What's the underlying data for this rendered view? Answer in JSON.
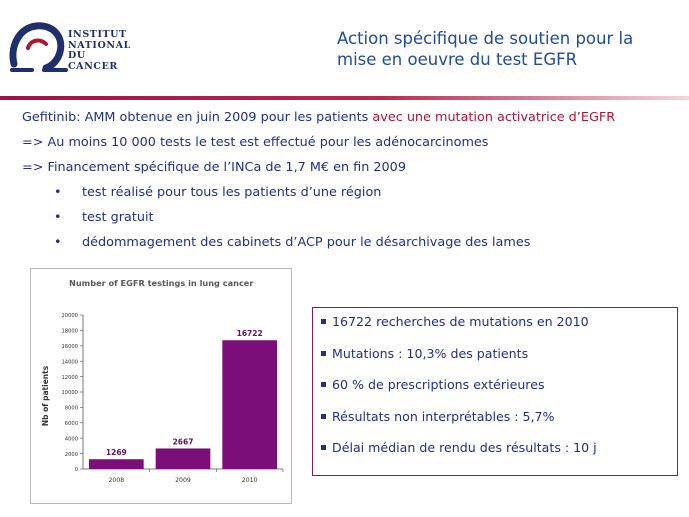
{
  "logo": {
    "line1": "Institut",
    "line2": "National",
    "line3": "du Cancer"
  },
  "title": {
    "line1": "Action spécifique de soutien pour la",
    "line2": "mise en oeuvre du test EGFR"
  },
  "bullets": {
    "line1_a": "Gefitinib: AMM obtenue en juin 2009 pour les patients ",
    "line1_b": "avec une mutation activatrice d’EGFR",
    "line2": "=> Au moins 10 000 tests le test est effectué pour les adénocarcinomes",
    "line3": "=> Financement spécifique de l’INCa de 1,7 M€ en fin 2009",
    "sub": [
      "test réalisé pour tous les patients d’une région",
      "test gratuit",
      "dédommagement des cabinets d’ACP pour le désarchivage des lames"
    ],
    "sub_marker": "•"
  },
  "chart_data": {
    "type": "bar",
    "title": "Number of EGFR testings in lung cancer",
    "xlabel": "",
    "ylabel": "Nb of patients",
    "categories": [
      "2008",
      "2009",
      "2010"
    ],
    "values": [
      1269,
      2667,
      16722
    ],
    "ylim": [
      0,
      20000
    ],
    "yticks": [
      0,
      2000,
      4000,
      6000,
      8000,
      10000,
      12000,
      14000,
      16000,
      18000,
      20000
    ],
    "grid": false,
    "bar_color": "#7b0e78",
    "label_color": "#6b0f5e"
  },
  "stats": {
    "items": [
      "16722 recherches de mutations en 2010",
      "Mutations : 10,3% des patients",
      "60 % de prescriptions extérieures",
      "Résultats non interprétables : 5,7%",
      "Délai médian de rendu des résultats : 10 j"
    ]
  },
  "colors": {
    "title_blue": "#1f4ba0",
    "text_blue": "#1f2f8c",
    "accent_red": "#b11532",
    "rule_maroon": "#9a1447"
  }
}
